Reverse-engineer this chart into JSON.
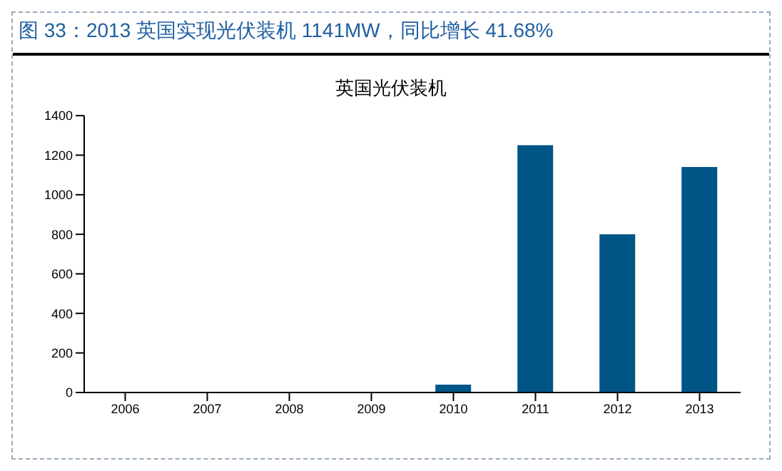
{
  "chart_data": {
    "type": "bar",
    "title": "图 33：2013 英国实现光伏装机 1141MW，同比增长 41.68%",
    "subtitle": "英国光伏装机",
    "categories": [
      "2006",
      "2007",
      "2008",
      "2009",
      "2010",
      "2011",
      "2012",
      "2013"
    ],
    "values": [
      0,
      0,
      0,
      0,
      40,
      1250,
      800,
      1140
    ],
    "color": "#005587",
    "ylim": [
      0,
      1400
    ],
    "yticks": [
      0,
      200,
      400,
      600,
      800,
      1000,
      1200,
      1400
    ]
  }
}
